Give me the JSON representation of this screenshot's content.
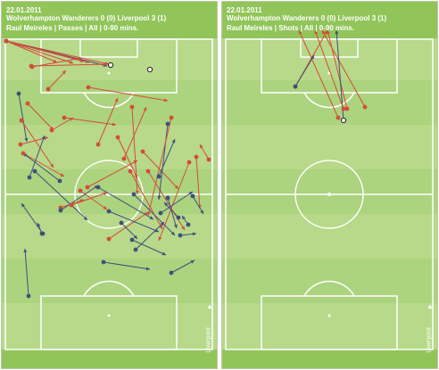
{
  "colors": {
    "pitch": "#b7d989",
    "band": "#91c559",
    "line": "#ffffff",
    "successful": "#3f4f7f",
    "unsuccessful": "#d44b3c",
    "assist_marker": "#ffffff"
  },
  "panels": [
    {
      "id": "passes",
      "date": "22.01.2011",
      "match": "Wolverhampton Wanderers 0 (0) Liverpool 3 (1)",
      "info": "Raul Meireles | Passes | All | 0-90 mins.",
      "attack_label": "Liverpool",
      "attack_icon": "up-arrow-icon"
    },
    {
      "id": "shots",
      "date": "22.01.2011",
      "match": "Wolverhampton Wanderers 0 (0) Liverpool 3 (1)",
      "info": "Raul Meireles | Shots | All | 0-90 mins.",
      "attack_label": "Liverpool",
      "attack_icon": "up-arrow-icon"
    }
  ]
}
